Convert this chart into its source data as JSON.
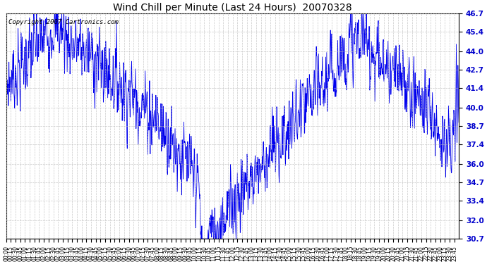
{
  "title": "Wind Chill per Minute (Last 24 Hours)  20070328",
  "copyright": "Copyright 2007 Cartronics.com",
  "line_color": "#0000ee",
  "background_color": "#ffffff",
  "grid_color": "#bbbbbb",
  "ylim": [
    30.7,
    46.7
  ],
  "yticks": [
    30.7,
    32.0,
    33.4,
    34.7,
    36.0,
    37.4,
    38.7,
    40.0,
    41.4,
    42.7,
    44.0,
    45.4,
    46.7
  ],
  "figwidth": 6.9,
  "figheight": 3.75,
  "dpi": 100
}
